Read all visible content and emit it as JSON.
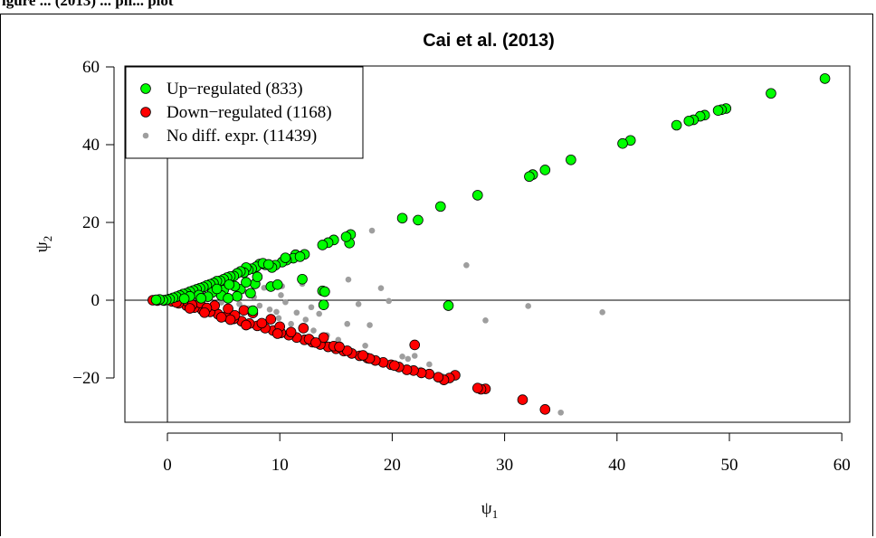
{
  "caption": "igure ... (2013) ... ph... plot",
  "chart_data": {
    "type": "scatter",
    "title": "Cai et al. (2013)",
    "xlabel": "ψ1",
    "ylabel": "ψ2",
    "xlim": [
      -3,
      61
    ],
    "ylim": [
      -31,
      61
    ],
    "xticks": [
      0,
      10,
      20,
      30,
      40,
      50,
      60
    ],
    "yticks": [
      -20,
      0,
      20,
      40,
      60
    ],
    "reference_lines": {
      "x": 0,
      "y": 0
    },
    "legend_position": "top-left",
    "series": [
      {
        "name": "Up−regulated (833)",
        "color": "#00ff00",
        "points": [
          [
            58.5,
            57
          ],
          [
            53.7,
            53.2
          ],
          [
            49.7,
            49.3
          ],
          [
            49.3,
            49.0
          ],
          [
            49.0,
            48.8
          ],
          [
            47.8,
            47.6
          ],
          [
            47.4,
            47.3
          ],
          [
            46.8,
            46.4
          ],
          [
            46.4,
            46.1
          ],
          [
            45.3,
            45.0
          ],
          [
            41.2,
            41.1
          ],
          [
            40.5,
            40.3
          ],
          [
            35.9,
            36.1
          ],
          [
            33.6,
            33.5
          ],
          [
            32.5,
            32.3
          ],
          [
            32.2,
            31.8
          ],
          [
            27.6,
            27.0
          ],
          [
            24.3,
            24.1
          ],
          [
            22.3,
            20.6
          ],
          [
            20.9,
            21.1
          ],
          [
            16.3,
            16.9
          ],
          [
            16.2,
            14.7
          ],
          [
            15.9,
            16.3
          ],
          [
            14.8,
            15.5
          ],
          [
            14.3,
            14.8
          ],
          [
            13.8,
            14.2
          ],
          [
            12.2,
            11.8
          ],
          [
            11.4,
            11.7
          ],
          [
            11.2,
            10.8
          ],
          [
            10.6,
            10.3
          ],
          [
            10.2,
            9.8
          ],
          [
            9.6,
            9.0
          ],
          [
            9.3,
            8.4
          ],
          [
            8.7,
            9.1
          ],
          [
            8.2,
            9.3
          ],
          [
            7.9,
            8.6
          ],
          [
            7.5,
            8.1
          ],
          [
            7.2,
            7.8
          ],
          [
            7.0,
            8.4
          ],
          [
            6.8,
            7.1
          ],
          [
            6.5,
            7.4
          ],
          [
            6.2,
            6.9
          ],
          [
            5.9,
            6.2
          ],
          [
            5.6,
            6.1
          ],
          [
            5.3,
            5.8
          ],
          [
            5.0,
            5.4
          ],
          [
            4.7,
            5.0
          ],
          [
            4.4,
            4.9
          ],
          [
            4.1,
            4.4
          ],
          [
            3.8,
            4.1
          ],
          [
            3.5,
            3.8
          ],
          [
            3.2,
            3.4
          ],
          [
            2.9,
            3.1
          ],
          [
            2.6,
            2.8
          ],
          [
            2.3,
            2.5
          ],
          [
            2.0,
            2.2
          ],
          [
            1.7,
            1.8
          ],
          [
            1.4,
            1.6
          ],
          [
            1.1,
            1.2
          ],
          [
            0.8,
            0.9
          ],
          [
            0.5,
            0.6
          ],
          [
            0.2,
            0.3
          ],
          [
            -0.1,
            0.1
          ],
          [
            -0.4,
            0.0
          ],
          [
            -0.7,
            0.2
          ],
          [
            -1.0,
            0.1
          ],
          [
            4.0,
            2.0
          ],
          [
            5.0,
            2.6
          ],
          [
            6.5,
            2.8
          ],
          [
            7.4,
            1.8
          ],
          [
            4.8,
            1.2
          ],
          [
            3.6,
            0.9
          ],
          [
            2.8,
            1.3
          ],
          [
            6.0,
            3.6
          ],
          [
            7.8,
            4.2
          ],
          [
            9.2,
            3.5
          ],
          [
            9.8,
            4.0
          ],
          [
            12.0,
            5.4
          ],
          [
            13.8,
            2.4
          ],
          [
            14.0,
            2.2
          ],
          [
            13.9,
            -1.2
          ],
          [
            7.6,
            -2.7
          ],
          [
            25.0,
            -1.4
          ],
          [
            6.2,
            1.0
          ],
          [
            5.4,
            0.5
          ],
          [
            3.0,
            0.5
          ],
          [
            2.0,
            1.0
          ],
          [
            1.5,
            0.4
          ],
          [
            8.5,
            9.5
          ],
          [
            8.0,
            6.0
          ],
          [
            7.0,
            4.6
          ],
          [
            10.5,
            10.9
          ],
          [
            9.0,
            9.2
          ],
          [
            11.8,
            11.2
          ],
          [
            5.5,
            4.0
          ],
          [
            4.4,
            2.9
          ]
        ]
      },
      {
        "name": "Down−regulated (1168)",
        "color": "#ff0000",
        "points": [
          [
            33.6,
            -28.1
          ],
          [
            31.6,
            -25.6
          ],
          [
            28.3,
            -22.8
          ],
          [
            27.9,
            -22.9
          ],
          [
            27.6,
            -22.6
          ],
          [
            25.6,
            -19.3
          ],
          [
            25.1,
            -20.0
          ],
          [
            24.6,
            -20.5
          ],
          [
            24.1,
            -19.8
          ],
          [
            22.0,
            -11.5
          ],
          [
            23.3,
            -19.0
          ],
          [
            22.6,
            -18.7
          ],
          [
            21.9,
            -18.1
          ],
          [
            21.3,
            -17.9
          ],
          [
            20.6,
            -17.2
          ],
          [
            19.9,
            -16.6
          ],
          [
            19.2,
            -16.0
          ],
          [
            18.5,
            -15.5
          ],
          [
            17.8,
            -14.9
          ],
          [
            17.1,
            -14.3
          ],
          [
            16.4,
            -13.7
          ],
          [
            15.7,
            -13.1
          ],
          [
            15.0,
            -12.5
          ],
          [
            14.3,
            -12.0
          ],
          [
            13.6,
            -11.4
          ],
          [
            12.9,
            -10.8
          ],
          [
            12.2,
            -10.2
          ],
          [
            11.5,
            -9.6
          ],
          [
            10.8,
            -9.0
          ],
          [
            10.1,
            -8.4
          ],
          [
            9.4,
            -7.8
          ],
          [
            8.7,
            -7.2
          ],
          [
            8.0,
            -6.6
          ],
          [
            7.3,
            -6.0
          ],
          [
            6.6,
            -5.4
          ],
          [
            5.9,
            -4.8
          ],
          [
            5.2,
            -4.2
          ],
          [
            4.5,
            -3.6
          ],
          [
            3.8,
            -3.0
          ],
          [
            3.1,
            -2.5
          ],
          [
            2.4,
            -1.9
          ],
          [
            1.7,
            -1.4
          ],
          [
            1.0,
            -0.8
          ],
          [
            0.4,
            -0.3
          ],
          [
            -0.3,
            -0.1
          ],
          [
            -0.9,
            -0.1
          ],
          [
            -1.3,
            0.0
          ],
          [
            13.9,
            -9.6
          ],
          [
            12.1,
            -7.2
          ],
          [
            10.0,
            -6.8
          ],
          [
            9.2,
            -4.9
          ],
          [
            7.6,
            -3.3
          ],
          [
            6.8,
            -2.6
          ],
          [
            5.4,
            -2.2
          ],
          [
            4.2,
            -1.4
          ],
          [
            2.9,
            -0.7
          ],
          [
            1.8,
            -0.4
          ],
          [
            11.0,
            -8.2
          ],
          [
            12.6,
            -10.0
          ],
          [
            14.8,
            -11.8
          ],
          [
            16.0,
            -13.0
          ],
          [
            18.0,
            -15.0
          ],
          [
            20.2,
            -16.8
          ],
          [
            17.4,
            -14.2
          ],
          [
            15.3,
            -12.0
          ],
          [
            13.2,
            -10.9
          ],
          [
            8.4,
            -5.9
          ],
          [
            6.0,
            -3.9
          ],
          [
            3.5,
            -2.0
          ],
          [
            2.2,
            -1.2
          ],
          [
            0.8,
            -0.6
          ],
          [
            9.8,
            -8.6
          ],
          [
            7.0,
            -6.4
          ],
          [
            5.6,
            -5.0
          ],
          [
            4.8,
            -4.4
          ],
          [
            3.3,
            -3.2
          ],
          [
            2.0,
            -2.1
          ]
        ]
      },
      {
        "name": "No diff. expr. (11439)",
        "color": "#9e9e9e",
        "points": [
          [
            35.0,
            -28.9
          ],
          [
            38.7,
            -3.1
          ],
          [
            32.1,
            -1.5
          ],
          [
            28.3,
            -5.2
          ],
          [
            26.6,
            9.0
          ],
          [
            24.5,
            -19.6
          ],
          [
            22.5,
            -17.9
          ],
          [
            21.4,
            -15.1
          ],
          [
            20.9,
            -14.5
          ],
          [
            19.0,
            3.1
          ],
          [
            19.7,
            -0.2
          ],
          [
            18.2,
            17.9
          ],
          [
            18.0,
            -6.4
          ],
          [
            17.0,
            -1.0
          ],
          [
            16.1,
            5.3
          ],
          [
            16.0,
            -6.1
          ],
          [
            15.2,
            -10.2
          ],
          [
            14.2,
            -9.0
          ],
          [
            13.7,
            2.8
          ],
          [
            13.5,
            -3.5
          ],
          [
            12.8,
            -1.8
          ],
          [
            12.3,
            -5.0
          ],
          [
            11.5,
            -3.2
          ],
          [
            11.0,
            -6.1
          ],
          [
            10.5,
            -0.5
          ],
          [
            10.1,
            1.3
          ],
          [
            9.7,
            -3.0
          ],
          [
            9.1,
            -2.4
          ],
          [
            8.6,
            3.2
          ],
          [
            8.2,
            -1.4
          ],
          [
            7.7,
            0.8
          ],
          [
            7.2,
            -2.1
          ],
          [
            6.8,
            2.3
          ],
          [
            6.4,
            -1.0
          ],
          [
            6.0,
            0.6
          ],
          [
            5.6,
            -2.5
          ],
          [
            5.2,
            1.4
          ],
          [
            4.8,
            -0.6
          ],
          [
            4.4,
            2.1
          ],
          [
            4.0,
            -1.4
          ],
          [
            3.6,
            0.3
          ],
          [
            3.2,
            1.7
          ],
          [
            2.8,
            -0.9
          ],
          [
            2.4,
            0.9
          ],
          [
            2.0,
            -0.3
          ],
          [
            1.6,
            0.5
          ],
          [
            1.2,
            -0.1
          ],
          [
            0.8,
            0.3
          ],
          [
            0.4,
            -0.2
          ],
          [
            0.0,
            0.1
          ],
          [
            -0.4,
            0.0
          ],
          [
            -0.8,
            -0.1
          ],
          [
            -1.2,
            0.0
          ],
          [
            22.0,
            -14.3
          ],
          [
            17.6,
            -11.7
          ],
          [
            23.3,
            -16.5
          ],
          [
            13.0,
            -7.8
          ],
          [
            9.9,
            -4.6
          ],
          [
            12.0,
            4.2
          ],
          [
            10.2,
            3.6
          ]
        ]
      }
    ]
  }
}
